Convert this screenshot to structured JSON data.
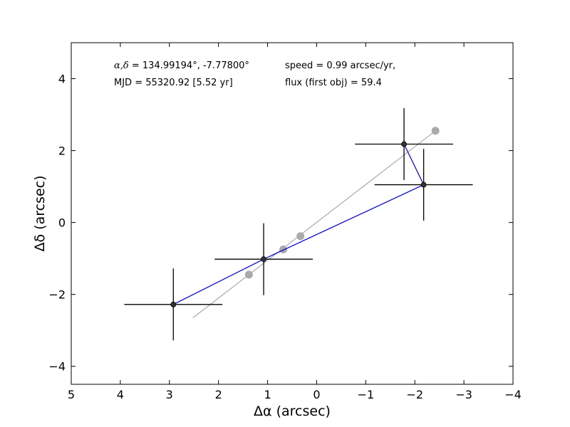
{
  "chart_data": {
    "type": "scatter",
    "xlabel": "Δα (arcsec)",
    "ylabel": "Δδ (arcsec)",
    "xlim": [
      5,
      -4
    ],
    "ylim": [
      -4.5,
      5
    ],
    "x_ticks": [
      5,
      4,
      3,
      2,
      1,
      0,
      -1,
      -2,
      -3,
      -4
    ],
    "y_ticks": [
      4,
      2,
      0,
      -2,
      -4
    ],
    "x_tick_labels": [
      "5",
      "4",
      "3",
      "2",
      "1",
      "0",
      "−1",
      "−2",
      "−3",
      "−4"
    ],
    "y_tick_labels": [
      "4",
      "2",
      "0",
      "−2",
      "−4"
    ],
    "annotations": {
      "coords_symbol": "α,δ",
      "coords_value": " = 134.99194°, -7.77800°",
      "mjd": "MJD = 55320.92 [5.52 yr]",
      "speed": "speed = 0.99 arcsec/yr,",
      "flux": "flux (first obj) =  59.4"
    },
    "series": [
      {
        "kind": "observed",
        "color": "#0000cc",
        "marker_color": "#333333",
        "points": [
          {
            "x": 2.92,
            "y": -2.28,
            "xerr": 1.0,
            "yerr": 1.0
          },
          {
            "x": 1.08,
            "y": -1.02,
            "xerr": 1.0,
            "yerr": 1.0
          },
          {
            "x": -2.18,
            "y": 1.05,
            "xerr": 1.0,
            "yerr": 1.0
          },
          {
            "x": -1.78,
            "y": 2.18,
            "xerr": 1.0,
            "yerr": 1.0
          }
        ]
      },
      {
        "kind": "model",
        "color": "#aaaaaa",
        "line": [
          [
            2.52,
            -2.65
          ],
          [
            -2.42,
            2.55
          ]
        ],
        "points": [
          {
            "x": 1.38,
            "y": -1.45
          },
          {
            "x": 0.68,
            "y": -0.75
          },
          {
            "x": 0.33,
            "y": -0.38
          },
          {
            "x": -2.42,
            "y": 2.55
          }
        ]
      }
    ]
  }
}
